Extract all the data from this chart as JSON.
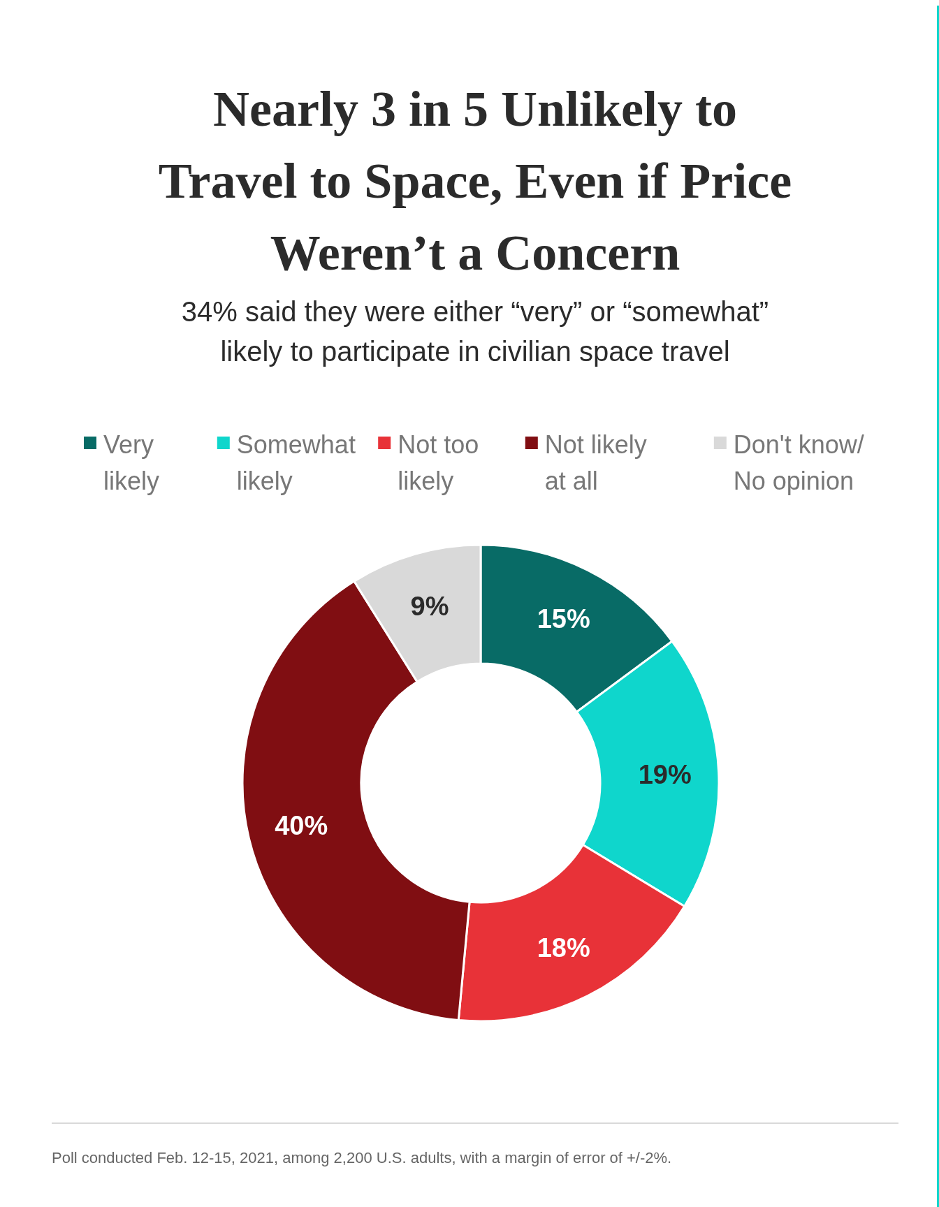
{
  "chart_data": {
    "type": "donut",
    "title": "Nearly 3 in 5 Unlikely to Travel to Space, Even if Price Weren’t a Concern",
    "subtitle": "34% said they were either “very” or “somewhat” likely to participate in civilian space travel",
    "categories": [
      "Very likely",
      "Somewhat likely",
      "Not too likely",
      "Not likely at all",
      "Don't know/ No opinion"
    ],
    "values": [
      15,
      19,
      18,
      40,
      9
    ],
    "colors": [
      "#086b66",
      "#0fd6cc",
      "#e83238",
      "#800e12",
      "#d9d9d9"
    ],
    "value_labels": [
      "15%",
      "19%",
      "18%",
      "40%",
      "9%"
    ],
    "legend": "top",
    "annotations": [
      "Poll conducted Feb. 12-15, 2021, among 2,200 U.S. adults, with a margin of error of +/-2%."
    ]
  }
}
